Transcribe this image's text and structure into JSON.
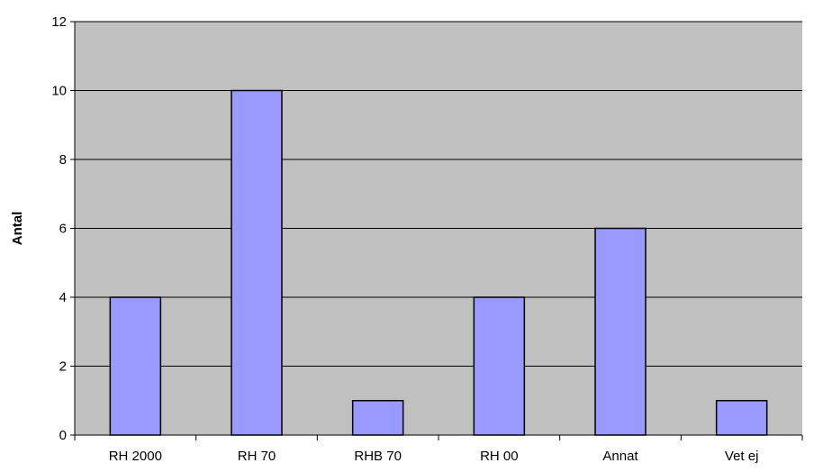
{
  "chart_data": {
    "type": "bar",
    "categories": [
      "RH 2000",
      "RH 70",
      "RHB 70",
      "RH 00",
      "Annat",
      "Vet ej"
    ],
    "values": [
      4,
      10,
      1,
      4,
      6,
      1
    ],
    "title": "",
    "xlabel": "",
    "ylabel": "Antal",
    "ylim": [
      0,
      12
    ],
    "yticks": [
      0,
      2,
      4,
      6,
      8,
      10,
      12
    ],
    "grid": true,
    "legend": "none",
    "colors": {
      "plot_background": "#c0c0c0",
      "bar_fill": "#9999ff",
      "bar_stroke": "#000000",
      "grid": "#000000"
    }
  }
}
